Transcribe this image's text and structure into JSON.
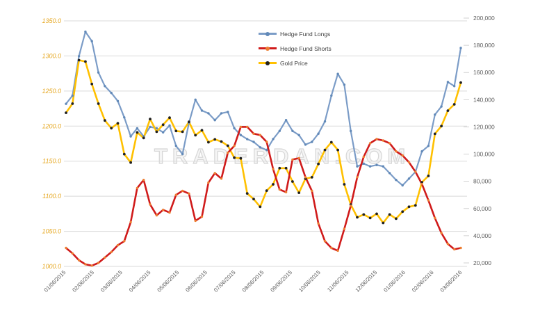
{
  "watermark_text": "TRADERDAN.COM",
  "chart_data": {
    "type": "line",
    "title": "",
    "legend_position": "top-center",
    "grid": true,
    "x_tick_labels": [
      "01/06/2015",
      "02/06/2015",
      "03/06/2015",
      "04/06/2015",
      "05/06/2015",
      "06/06/2015",
      "07/06/2015",
      "08/06/2015",
      "09/06/2015",
      "10/06/2015",
      "11/06/2015",
      "12/06/2015",
      "01/06/2016",
      "02/06/2016",
      "03/06/2016"
    ],
    "x_dates": [
      "01/06/2015",
      "01/13/2015",
      "01/20/2015",
      "01/27/2015",
      "02/03/2015",
      "02/10/2015",
      "02/17/2015",
      "02/24/2015",
      "03/03/2015",
      "03/10/2015",
      "03/17/2015",
      "03/24/2015",
      "03/31/2015",
      "04/07/2015",
      "04/14/2015",
      "04/21/2015",
      "04/28/2015",
      "05/05/2015",
      "05/12/2015",
      "05/19/2015",
      "05/26/2015",
      "06/02/2015",
      "06/09/2015",
      "06/16/2015",
      "06/23/2015",
      "06/30/2015",
      "07/07/2015",
      "07/14/2015",
      "07/21/2015",
      "07/28/2015",
      "08/04/2015",
      "08/11/2015",
      "08/18/2015",
      "08/25/2015",
      "09/01/2015",
      "09/08/2015",
      "09/15/2015",
      "09/22/2015",
      "09/29/2015",
      "10/06/2015",
      "10/13/2015",
      "10/20/2015",
      "10/27/2015",
      "11/03/2015",
      "11/10/2015",
      "11/17/2015",
      "11/24/2015",
      "12/01/2015",
      "12/08/2015",
      "12/15/2015",
      "12/22/2015",
      "12/29/2015",
      "01/05/2016",
      "01/12/2016",
      "01/19/2016",
      "01/26/2016",
      "02/02/2016",
      "02/09/2016",
      "02/16/2016",
      "02/23/2016",
      "03/01/2016",
      "03/08/2016"
    ],
    "left_axis": {
      "min": 1000,
      "max": 1350,
      "tick_step": 50,
      "tick_labels": [
        "1350.0",
        "1300.0",
        "1250.0",
        "1200.0",
        "1150.0",
        "1100.0",
        "1050.0",
        "1000.0"
      ],
      "label_color": "#E6A823"
    },
    "right_axis": {
      "min": 20000,
      "max": 200000,
      "tick_step": 20000,
      "tick_labels": [
        "200,000",
        "180,000",
        "160,000",
        "140,000",
        "120,000",
        "100,000",
        "80,000",
        "60,000",
        "40,000",
        "20,000"
      ],
      "label_color": "#595959"
    },
    "series": [
      {
        "name": "Hedge Fund Longs",
        "axis": "right",
        "color": "#7B9CC7",
        "marker_color": "#6189B8",
        "values": [
          137000,
          143000,
          172000,
          190000,
          183000,
          160000,
          150000,
          145000,
          139000,
          127000,
          113000,
          119000,
          113000,
          120000,
          119000,
          116000,
          121000,
          106000,
          100000,
          123000,
          140000,
          132000,
          130000,
          125000,
          130000,
          131000,
          119000,
          114000,
          111000,
          109000,
          105000,
          103000,
          111000,
          117000,
          125000,
          117000,
          114000,
          107000,
          109000,
          115000,
          124000,
          143000,
          159000,
          151000,
          117000,
          91000,
          93000,
          91000,
          92000,
          91000,
          86000,
          81000,
          77000,
          82000,
          87000,
          102000,
          106000,
          129000,
          135000,
          153000,
          150000,
          178000
        ]
      },
      {
        "name": "Hedge Fund Shorts",
        "axis": "right",
        "color": "#D01B1B",
        "marker_color": "#ED7D31",
        "values": [
          31000,
          27000,
          22000,
          19000,
          18000,
          20000,
          24000,
          28000,
          33000,
          36000,
          50000,
          75000,
          81000,
          63000,
          55000,
          59000,
          57000,
          70000,
          73000,
          71000,
          51000,
          54000,
          79000,
          86000,
          82000,
          101000,
          106000,
          120000,
          120000,
          115000,
          114000,
          109000,
          89000,
          74000,
          72000,
          96000,
          97000,
          83000,
          73000,
          49000,
          36000,
          31000,
          29000,
          45000,
          62000,
          83000,
          98000,
          108000,
          111000,
          110000,
          108000,
          102000,
          99000,
          94000,
          87000,
          78000,
          66000,
          53000,
          42000,
          34000,
          30000,
          31000
        ]
      },
      {
        "name": "Gold Price",
        "axis": "left",
        "color": "#FFC000",
        "marker_color": "#212121",
        "values": [
          1219,
          1232,
          1294,
          1292,
          1260,
          1232,
          1208,
          1197,
          1204,
          1160,
          1148,
          1191,
          1183,
          1210,
          1192,
          1202,
          1212,
          1193,
          1192,
          1206,
          1187,
          1194,
          1177,
          1181,
          1178,
          1172,
          1155,
          1154,
          1104,
          1096,
          1085,
          1108,
          1117,
          1140,
          1140,
          1121,
          1105,
          1125,
          1127,
          1146,
          1166,
          1177,
          1166,
          1117,
          1088,
          1070,
          1074,
          1069,
          1075,
          1062,
          1074,
          1068,
          1078,
          1085,
          1087,
          1120,
          1129,
          1189,
          1200,
          1222,
          1231,
          1262
        ]
      }
    ]
  }
}
